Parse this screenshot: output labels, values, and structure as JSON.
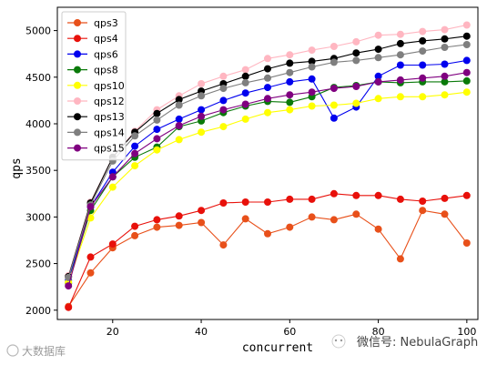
{
  "chart_data": {
    "type": "line",
    "xlabel": "concurrent",
    "ylabel": "qps",
    "xlim": [
      7.5,
      102.5
    ],
    "ylim": [
      1900,
      5250
    ],
    "xticks": [
      20,
      40,
      60,
      80,
      100
    ],
    "yticks": [
      2000,
      2500,
      3000,
      3500,
      4000,
      4500,
      5000
    ],
    "grid": false,
    "legend_position": "top-left",
    "x": [
      10,
      15,
      20,
      25,
      30,
      35,
      40,
      45,
      50,
      55,
      60,
      65,
      70,
      75,
      80,
      85,
      90,
      95,
      100
    ],
    "series": [
      {
        "name": "qps3",
        "color": "#e8501a",
        "values": [
          2040,
          2400,
          2670,
          2800,
          2890,
          2910,
          2940,
          2700,
          2980,
          2820,
          2890,
          3000,
          2970,
          3030,
          2870,
          2550,
          3070,
          3030,
          2720
        ]
      },
      {
        "name": "qps4",
        "color": "#e8100a",
        "values": [
          2030,
          2570,
          2710,
          2900,
          2970,
          3010,
          3070,
          3150,
          3160,
          3160,
          3190,
          3190,
          3250,
          3230,
          3230,
          3190,
          3170,
          3200,
          3230
        ]
      },
      {
        "name": "qps6",
        "color": "#0000ee",
        "values": [
          2320,
          3110,
          3480,
          3760,
          3940,
          4050,
          4150,
          4250,
          4330,
          4390,
          4450,
          4480,
          4060,
          4180,
          4510,
          4630,
          4630,
          4640,
          4680
        ]
      },
      {
        "name": "qps8",
        "color": "#0a7a0a",
        "values": [
          2290,
          3070,
          3430,
          3640,
          3750,
          3970,
          4030,
          4120,
          4190,
          4240,
          4230,
          4290,
          4390,
          4410,
          4450,
          4440,
          4450,
          4450,
          4460
        ]
      },
      {
        "name": "qps10",
        "color": "#ffff00",
        "values": [
          2300,
          2990,
          3320,
          3550,
          3720,
          3830,
          3910,
          3970,
          4050,
          4120,
          4150,
          4190,
          4200,
          4220,
          4270,
          4290,
          4290,
          4310,
          4340
        ]
      },
      {
        "name": "qps12",
        "color": "#ffb6c1",
        "values": [
          2370,
          3160,
          3640,
          3920,
          4150,
          4300,
          4430,
          4510,
          4580,
          4700,
          4740,
          4790,
          4830,
          4880,
          4950,
          4960,
          4990,
          5010,
          5060
        ]
      },
      {
        "name": "qps13",
        "color": "#000000",
        "values": [
          2360,
          3150,
          3640,
          3910,
          4110,
          4260,
          4350,
          4430,
          4510,
          4590,
          4650,
          4670,
          4700,
          4760,
          4800,
          4860,
          4890,
          4910,
          4940
        ]
      },
      {
        "name": "qps14",
        "color": "#7f7f7f",
        "values": [
          2350,
          3130,
          3600,
          3870,
          4040,
          4200,
          4300,
          4380,
          4440,
          4490,
          4550,
          4610,
          4660,
          4680,
          4710,
          4740,
          4780,
          4820,
          4850
        ]
      },
      {
        "name": "qps15",
        "color": "#800080",
        "values": [
          2260,
          3110,
          3430,
          3680,
          3840,
          3980,
          4080,
          4150,
          4210,
          4270,
          4310,
          4340,
          4380,
          4400,
          4450,
          4470,
          4490,
          4510,
          4550
        ]
      }
    ]
  },
  "watermark_left": "大数据库",
  "watermark_right": "微信号: NebulaGraph"
}
